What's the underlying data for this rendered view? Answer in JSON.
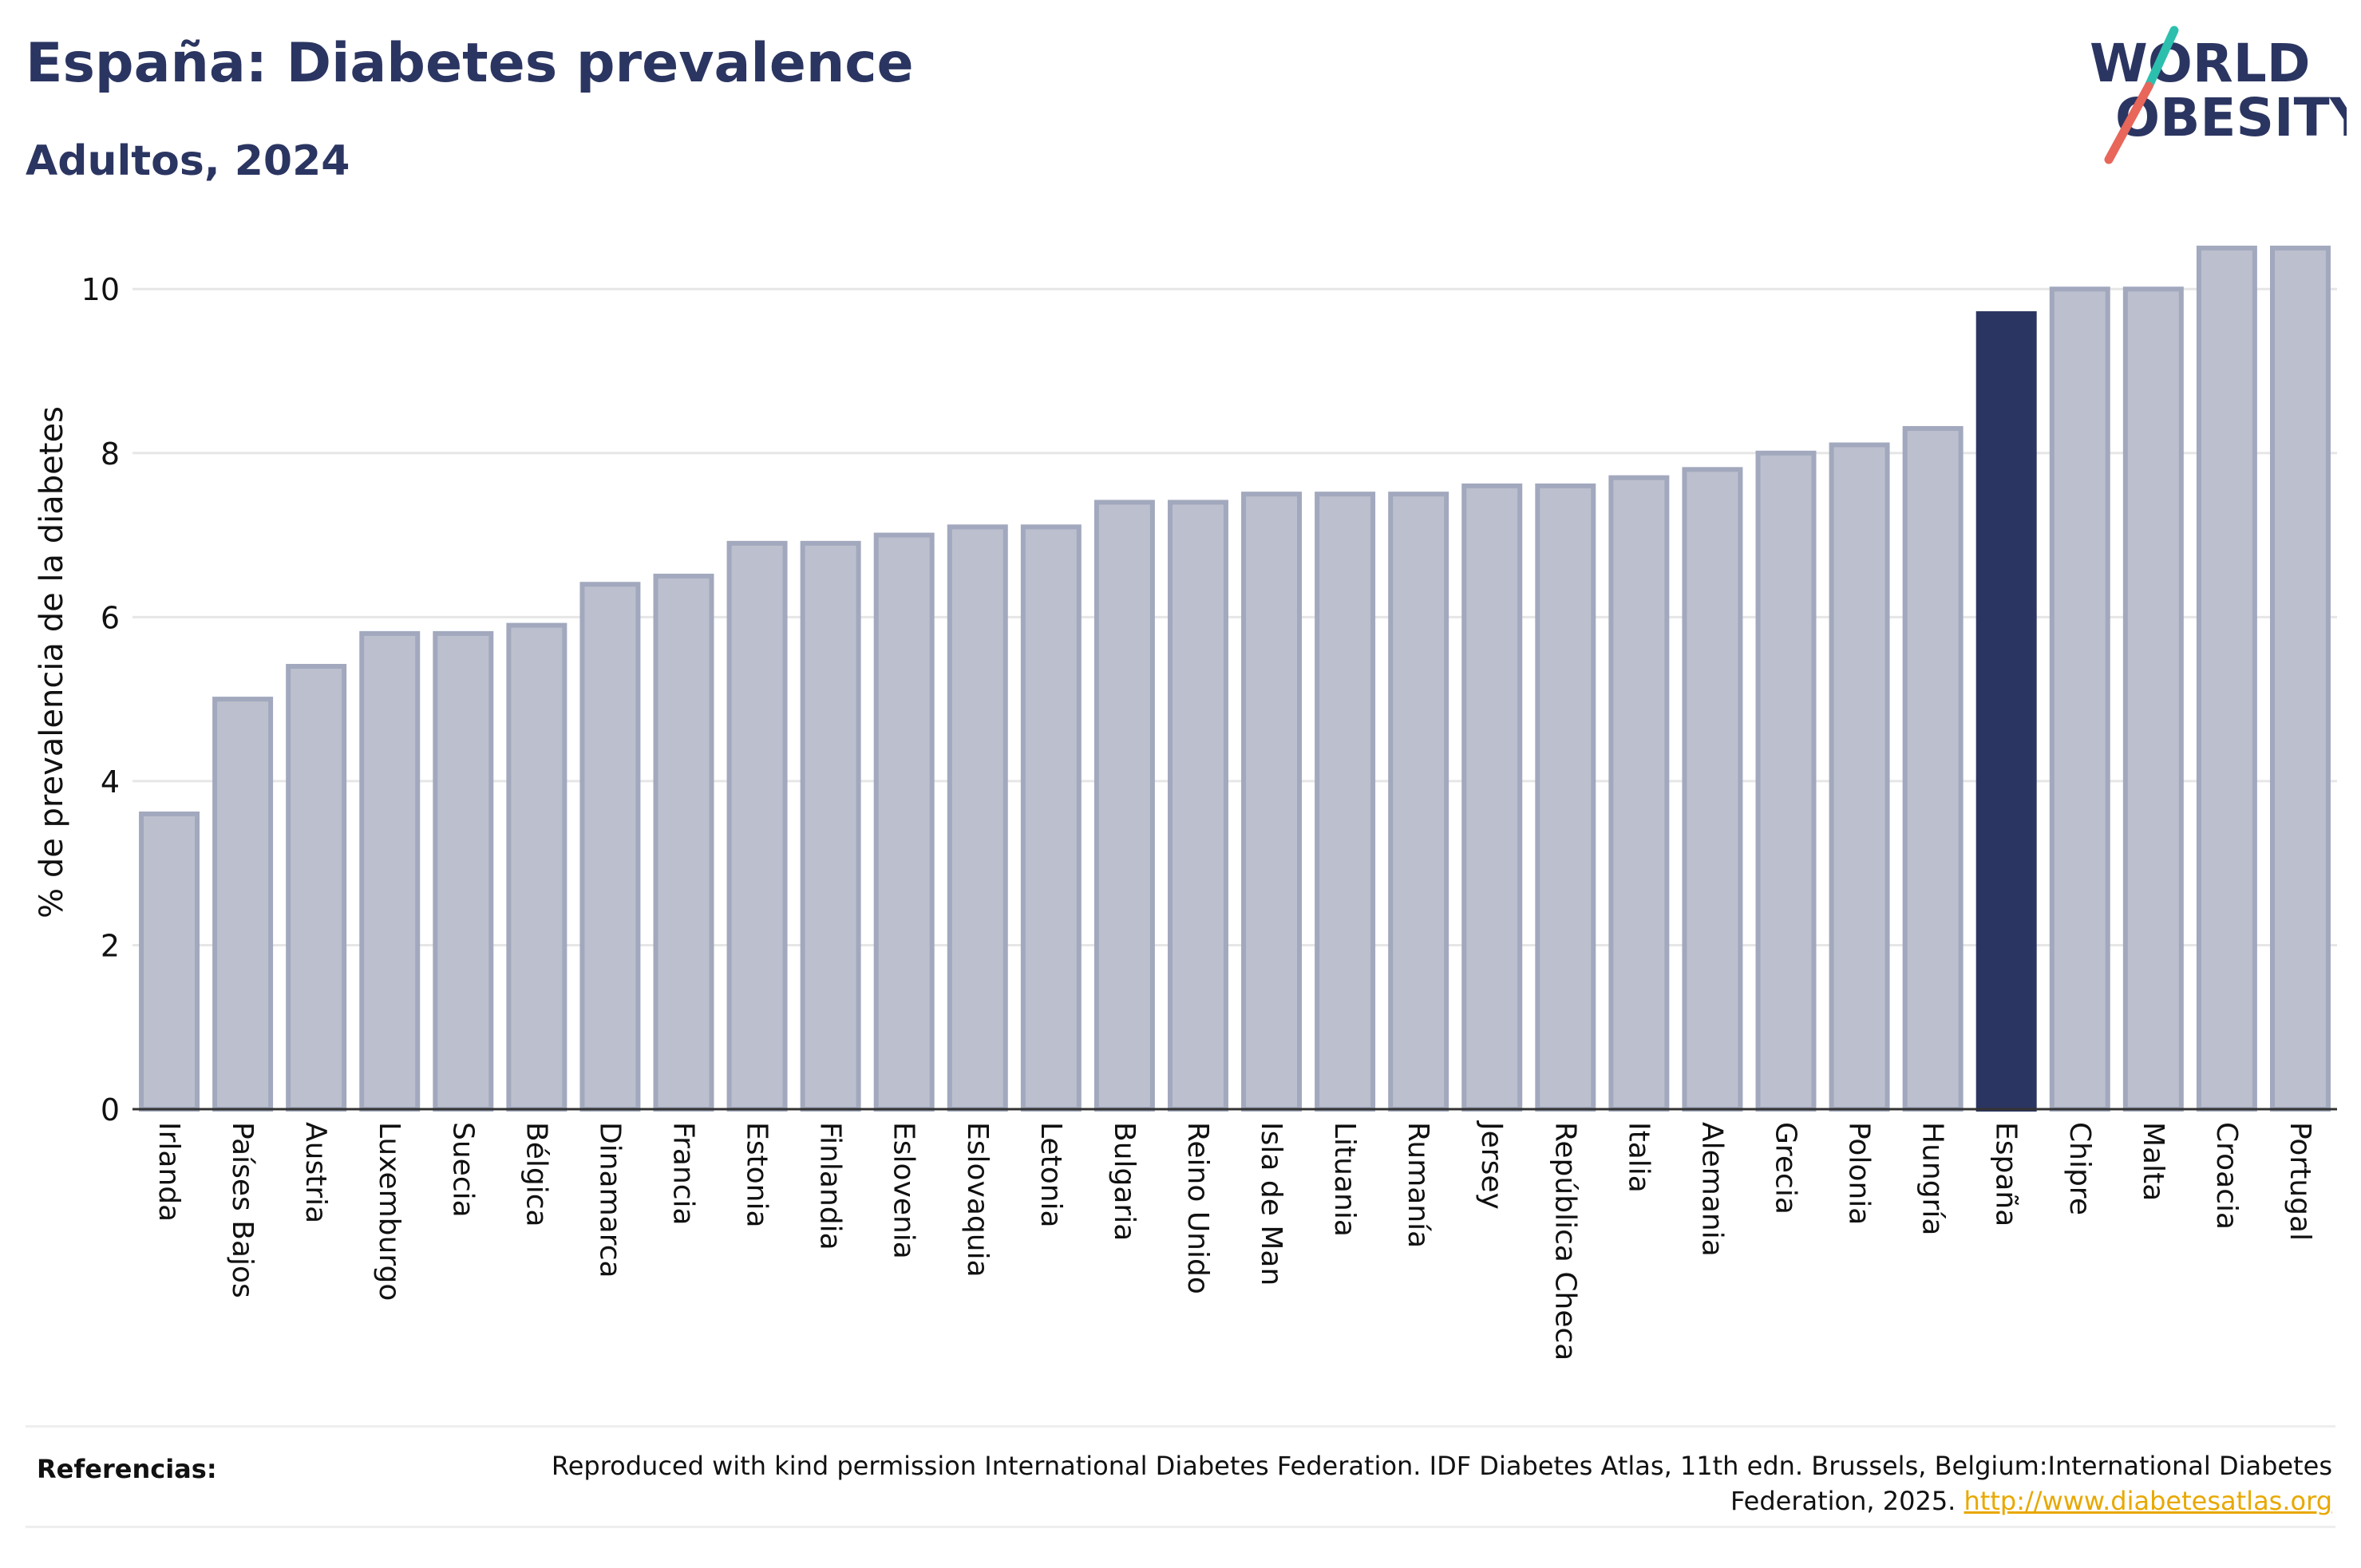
{
  "header": {
    "title": "España: Diabetes prevalence",
    "subtitle": "Adultos, 2024"
  },
  "logo": {
    "line1": "WORLD",
    "line2": "OBESITY",
    "colors": {
      "text": "#2b3561",
      "slash_top": "#2cbfae",
      "slash_bottom": "#e8665a"
    }
  },
  "chart_data": {
    "type": "bar",
    "title": "España: Diabetes prevalence",
    "subtitle": "Adultos, 2024",
    "xlabel": "",
    "ylabel": "% de prevalencia de la diabetes",
    "ylim": [
      0,
      10.8
    ],
    "yticks": [
      0,
      2,
      4,
      6,
      8,
      10
    ],
    "grid": true,
    "highlight": "España",
    "colors": {
      "bar": "#bcc0ce",
      "bar_border": "#a2a8bd",
      "highlight": "#2b3561"
    },
    "categories": [
      "Irlanda",
      "Países Bajos",
      "Austria",
      "Luxemburgo",
      "Suecia",
      "Bélgica",
      "Dinamarca",
      "Francia",
      "Estonia",
      "Finlandia",
      "Eslovenia",
      "Eslovaquia",
      "Letonia",
      "Bulgaria",
      "Reino Unido",
      "Isla de Man",
      "Lituania",
      "Rumanía",
      "Jersey",
      "República Checa",
      "Italia",
      "Alemania",
      "Grecia",
      "Polonia",
      "Hungría",
      "España",
      "Chipre",
      "Malta",
      "Croacia",
      "Portugal"
    ],
    "values": [
      3.6,
      5.0,
      5.4,
      5.8,
      5.8,
      5.9,
      6.4,
      6.5,
      6.9,
      6.9,
      7.0,
      7.1,
      7.1,
      7.4,
      7.4,
      7.5,
      7.5,
      7.5,
      7.6,
      7.6,
      7.7,
      7.8,
      8.0,
      8.1,
      8.3,
      9.7,
      10.0,
      10.0,
      10.5,
      10.5
    ]
  },
  "references": {
    "label": "Referencias:",
    "text": "Reproduced with kind permission International Diabetes Federation. IDF Diabetes Atlas, 11th edn. Brussels, Belgium:International Diabetes Federation, 2025.",
    "link_text": "http://www.diabetesatlas.org"
  }
}
